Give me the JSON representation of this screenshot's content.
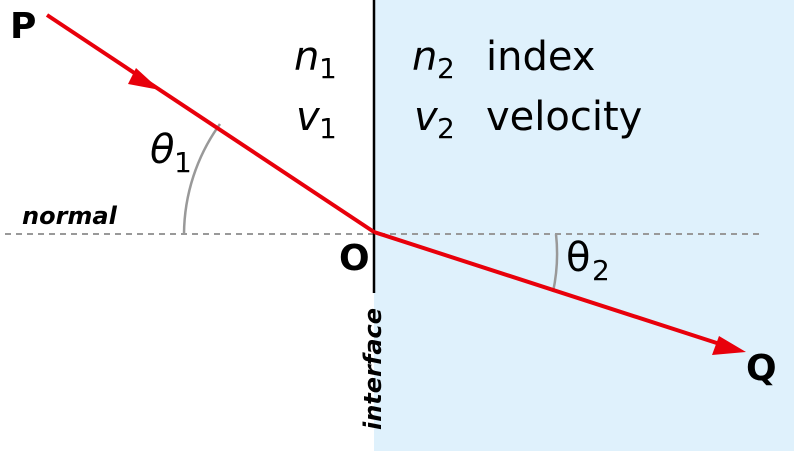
{
  "diagram": {
    "points": {
      "p": "P",
      "o": "O",
      "q": "Q"
    },
    "labels": {
      "normal": "normal",
      "interface": "interface",
      "index": "index",
      "velocity": "velocity"
    },
    "medium1": {
      "n": "n",
      "n_sub": "1",
      "v": "v",
      "v_sub": "1"
    },
    "medium2": {
      "n": "n",
      "n_sub": "2",
      "v": "v",
      "v_sub": "2"
    },
    "angles": {
      "theta1": {
        "symbol": "θ",
        "sub": "1"
      },
      "theta2": {
        "symbol": "θ",
        "sub": "2"
      }
    },
    "colors": {
      "ray": "#e8000b",
      "medium2_fill": "#dff1fc",
      "normal_line": "#999999",
      "angle_arc": "#999999",
      "interface_line": "#000000"
    }
  }
}
